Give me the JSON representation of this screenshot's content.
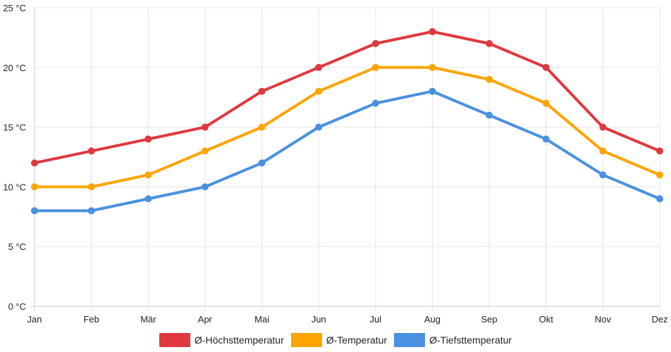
{
  "chart_data": {
    "type": "line",
    "categories": [
      "Jan",
      "Feb",
      "Mär",
      "Apr",
      "Mai",
      "Jun",
      "Jul",
      "Aug",
      "Sep",
      "Okt",
      "Nov",
      "Dez"
    ],
    "y_ticks": [
      "0 °C",
      "5 °C",
      "10 °C",
      "15 °C",
      "20 °C",
      "25 °C"
    ],
    "y_tick_values": [
      0,
      5,
      10,
      15,
      20,
      25
    ],
    "ylim": [
      0,
      25
    ],
    "grid": true,
    "legend_position": "bottom",
    "series": [
      {
        "name": "Ø-Höchsttemperatur",
        "color": "#e0383e",
        "values": [
          12,
          13,
          14,
          15,
          18,
          20,
          22,
          23,
          22,
          20,
          15,
          13
        ]
      },
      {
        "name": "Ø-Temperatur",
        "color": "#fca500",
        "values": [
          10,
          10,
          11,
          13,
          15,
          18,
          20,
          20,
          19,
          17,
          13,
          11
        ]
      },
      {
        "name": "Ø-Tiefsttemperatur",
        "color": "#4a90e0",
        "values": [
          8,
          8,
          9,
          10,
          12,
          15,
          17,
          18,
          16,
          14,
          11,
          9
        ]
      }
    ]
  }
}
